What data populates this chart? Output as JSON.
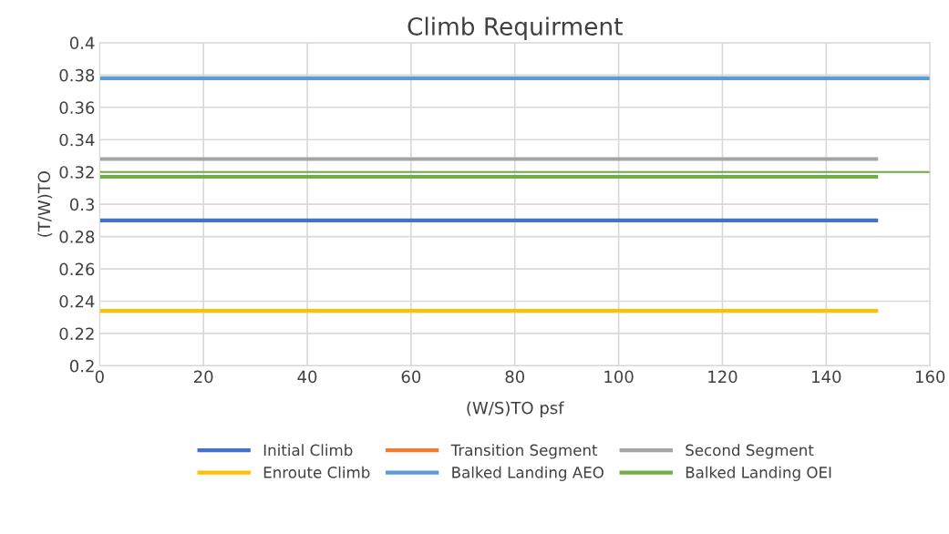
{
  "chart_data": {
    "type": "line",
    "title": "Climb Requirment",
    "xlabel": "(W/S)TO psf",
    "ylabel": "(T/W)TO",
    "xlim": [
      0,
      160
    ],
    "xticks": [
      0,
      20,
      40,
      60,
      80,
      100,
      120,
      140,
      160
    ],
    "ylim": [
      0.2,
      0.4
    ],
    "yticks": [
      0.2,
      0.22,
      0.24,
      0.26,
      0.28,
      0.3,
      0.32,
      0.34,
      0.36,
      0.38,
      0.4
    ],
    "grid": true,
    "legend": "bottom",
    "marker": "none",
    "line_style": "solid",
    "series": [
      {
        "name": "Initial Climb",
        "color": "#4472c4",
        "x": [
          0,
          150
        ],
        "values": [
          0.29,
          0.29
        ]
      },
      {
        "name": "Transition Segment",
        "color": "#ed7d31"
      },
      {
        "name": "Second Segment",
        "color": "#a5a5a5",
        "x": [
          0,
          150
        ],
        "values": [
          0.328,
          0.328
        ]
      },
      {
        "name": "Enroute Climb",
        "color": "#ffc000",
        "x": [
          0,
          150
        ],
        "values": [
          0.234,
          0.234
        ]
      },
      {
        "name": "Balked Landing AEO",
        "color": "#5b9bd5",
        "x": [
          0,
          160
        ],
        "values": [
          0.378,
          0.378
        ]
      },
      {
        "name": "Balked Landing OEI",
        "color": "#70ad47",
        "x": [
          0,
          150
        ],
        "values": [
          0.317,
          0.317
        ]
      },
      {
        "color": "#70ad47",
        "x": [
          0,
          160
        ],
        "values": [
          0.32,
          0.32
        ]
      }
    ]
  }
}
